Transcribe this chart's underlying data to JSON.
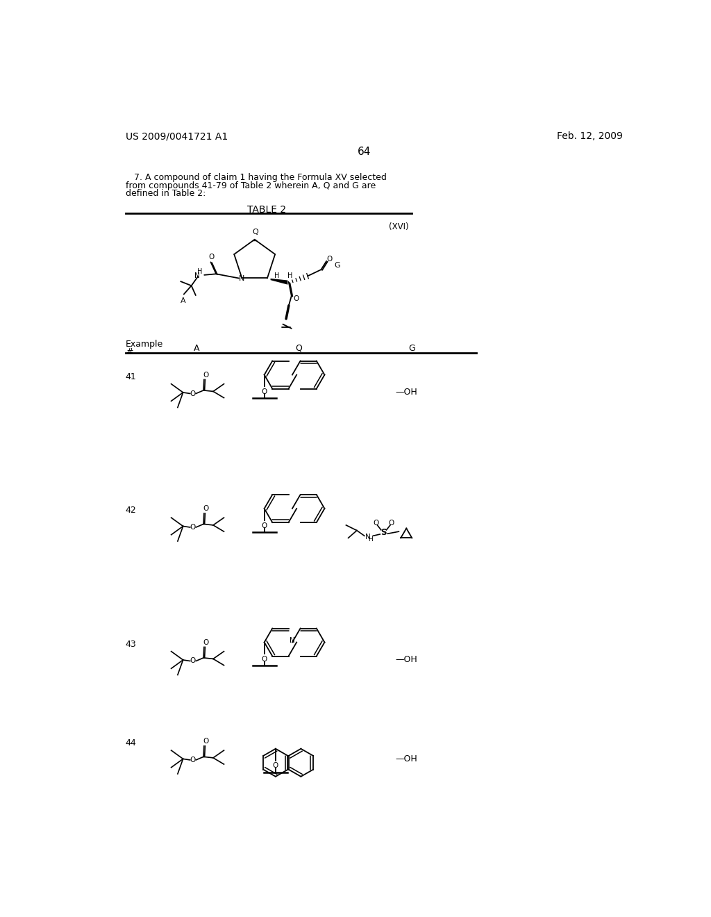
{
  "page_number": "64",
  "patent_number": "US 2009/0041721 A1",
  "patent_date": "Feb. 12, 2009",
  "claim_text_1": "   7. A compound of claim 1 having the Formula XV selected",
  "claim_text_2": "from compounds 41-79 of Table 2 wherein A, Q and G are",
  "claim_text_3": "defined in Table 2:",
  "table_title": "TABLE 2",
  "formula_label": "(XVI)",
  "bg_color": "#ffffff"
}
